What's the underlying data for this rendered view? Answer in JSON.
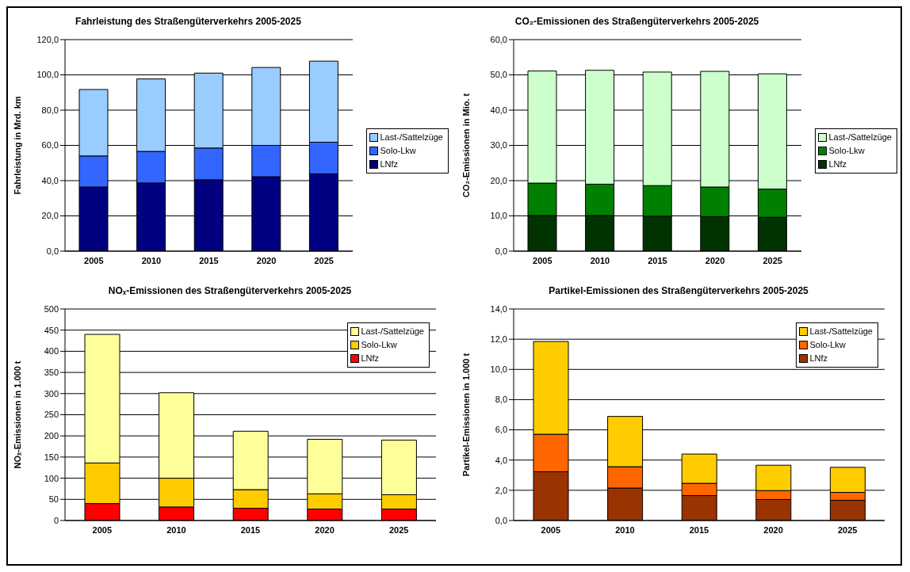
{
  "chart_data": [
    {
      "type": "bar",
      "title": "Fahrleistung des Straßengüterverkehrs 2005-2025",
      "ylabel": "Fahrleistung in Mrd. km",
      "categories": [
        "2005",
        "2010",
        "2015",
        "2020",
        "2025"
      ],
      "stacked": true,
      "grid": "y",
      "legend": "right",
      "ylim": [
        0,
        120
      ],
      "yticks": [
        {
          "value": 0,
          "label": "0,0"
        },
        {
          "value": 20,
          "label": "20,0"
        },
        {
          "value": 40,
          "label": "40,0"
        },
        {
          "value": 60,
          "label": "60,0"
        },
        {
          "value": 80,
          "label": "80,0"
        },
        {
          "value": 100,
          "label": "100,0"
        },
        {
          "value": 120,
          "label": "120,0"
        }
      ],
      "series": [
        {
          "name": "LNfz",
          "color": "#000080",
          "values": [
            36.4,
            38.7,
            40.5,
            42.2,
            43.9
          ]
        },
        {
          "name": "Solo-Lkw",
          "color": "#3366ff",
          "values": [
            17.6,
            17.9,
            18.0,
            17.8,
            17.9
          ]
        },
        {
          "name": "Last-/Sattelzüge",
          "color": "#99ccff",
          "values": [
            37.7,
            41.1,
            42.5,
            44.2,
            46.0
          ]
        }
      ]
    },
    {
      "type": "bar",
      "title": "CO₂-Emissionen des Straßengüterverkehrs 2005-2025",
      "ylabel": "CO₂-Emissionen in Mio. t",
      "categories": [
        "2005",
        "2010",
        "2015",
        "2020",
        "2025"
      ],
      "stacked": true,
      "grid": "y",
      "legend": "right",
      "ylim": [
        0,
        60
      ],
      "yticks": [
        {
          "value": 0,
          "label": "0,0"
        },
        {
          "value": 10,
          "label": "10,0"
        },
        {
          "value": 20,
          "label": "20,0"
        },
        {
          "value": 30,
          "label": "30,0"
        },
        {
          "value": 40,
          "label": "40,0"
        },
        {
          "value": 50,
          "label": "50,0"
        },
        {
          "value": 60,
          "label": "60,0"
        }
      ],
      "series": [
        {
          "name": "LNfz",
          "color": "#003300",
          "values": [
            10.1,
            10.1,
            9.9,
            9.8,
            9.6
          ]
        },
        {
          "name": "Solo-Lkw",
          "color": "#008000",
          "values": [
            9.2,
            8.9,
            8.7,
            8.4,
            8.0
          ]
        },
        {
          "name": "Last-/Sattelzüge",
          "color": "#ccffcc",
          "values": [
            31.8,
            32.3,
            32.2,
            32.8,
            32.7
          ]
        }
      ]
    },
    {
      "type": "bar",
      "title": "NOₓ-Emissionen des Straßengüterverkehrs 2005-2025",
      "ylabel": "NOₓ-Emissionen in 1.000 t",
      "categories": [
        "2005",
        "2010",
        "2015",
        "2020",
        "2025"
      ],
      "stacked": true,
      "grid": "y",
      "legend": "top right",
      "ylim": [
        0,
        500
      ],
      "yticks": [
        0,
        50,
        100,
        150,
        200,
        250,
        300,
        350,
        400,
        450,
        500
      ],
      "series": [
        {
          "name": "LNfz",
          "color": "#ff0000",
          "values": [
            40,
            32,
            29,
            27,
            27
          ]
        },
        {
          "name": "Solo-Lkw",
          "color": "#ffcc00",
          "values": [
            96,
            68,
            44,
            36,
            34
          ]
        },
        {
          "name": "Last-/Sattelzüge",
          "color": "#ffff99",
          "values": [
            304,
            202,
            138,
            129,
            129
          ]
        }
      ]
    },
    {
      "type": "bar",
      "title": "Partikel-Emissionen des Straßengüterverkehrs 2005-2025",
      "ylabel": "Partikel-Emissionen in 1.000 t",
      "categories": [
        "2005",
        "2010",
        "2015",
        "2020",
        "2025"
      ],
      "stacked": true,
      "grid": "y",
      "legend": "top right",
      "ylim": [
        0,
        14
      ],
      "yticks": [
        {
          "value": 0,
          "label": "0,0"
        },
        {
          "value": 2,
          "label": "2,0"
        },
        {
          "value": 4,
          "label": "4,0"
        },
        {
          "value": 6,
          "label": "6,0"
        },
        {
          "value": 8,
          "label": "8,0"
        },
        {
          "value": 10,
          "label": "10,0"
        },
        {
          "value": 12,
          "label": "12,0"
        },
        {
          "value": 14,
          "label": "14,0"
        }
      ],
      "series": [
        {
          "name": "LNfz",
          "color": "#993300",
          "values": [
            3.23,
            2.15,
            1.65,
            1.39,
            1.34
          ]
        },
        {
          "name": "Solo-Lkw",
          "color": "#ff6600",
          "values": [
            2.48,
            1.41,
            0.81,
            0.59,
            0.52
          ]
        },
        {
          "name": "Last-/Sattelzüge",
          "color": "#ffcc00",
          "values": [
            6.14,
            3.33,
            1.94,
            1.68,
            1.66
          ]
        }
      ]
    }
  ]
}
